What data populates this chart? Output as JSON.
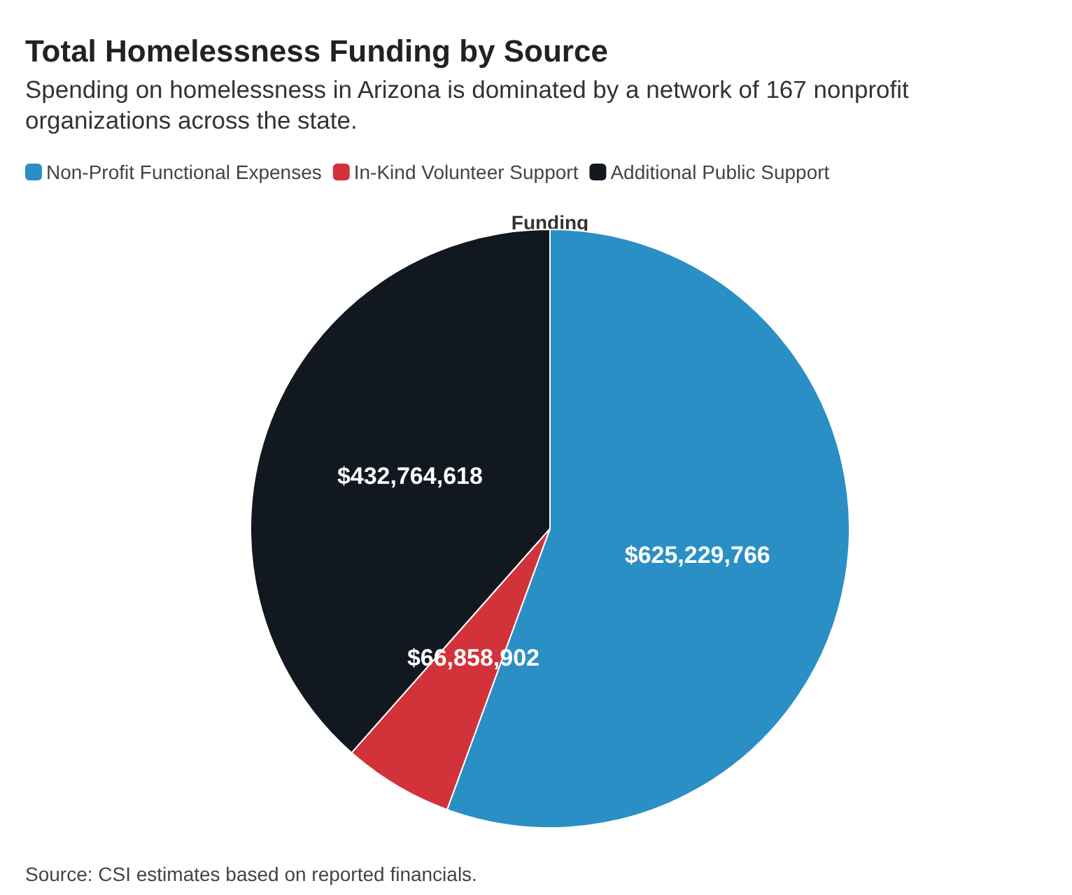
{
  "chart_data": {
    "type": "pie",
    "title": "Total Homelessness Funding by Source",
    "subtitle": "Spending on homelessness in Arizona is dominated by a network of 167 nonprofit organizations across the state.",
    "categories": [
      "Non-Profit Functional Expenses",
      "In-Kind Volunteer Support",
      "Additional Public Support"
    ],
    "values": [
      625229766,
      66858902,
      432764618
    ],
    "colors": [
      "#2a8fc4",
      "#d2333a",
      "#111820"
    ],
    "value_labels": [
      "$625,229,766",
      "$66,858,902",
      "$432,764,618"
    ],
    "legend": "top left",
    "annotations": [
      "Funding",
      "Source: CSI estimates based on reported financials."
    ]
  }
}
